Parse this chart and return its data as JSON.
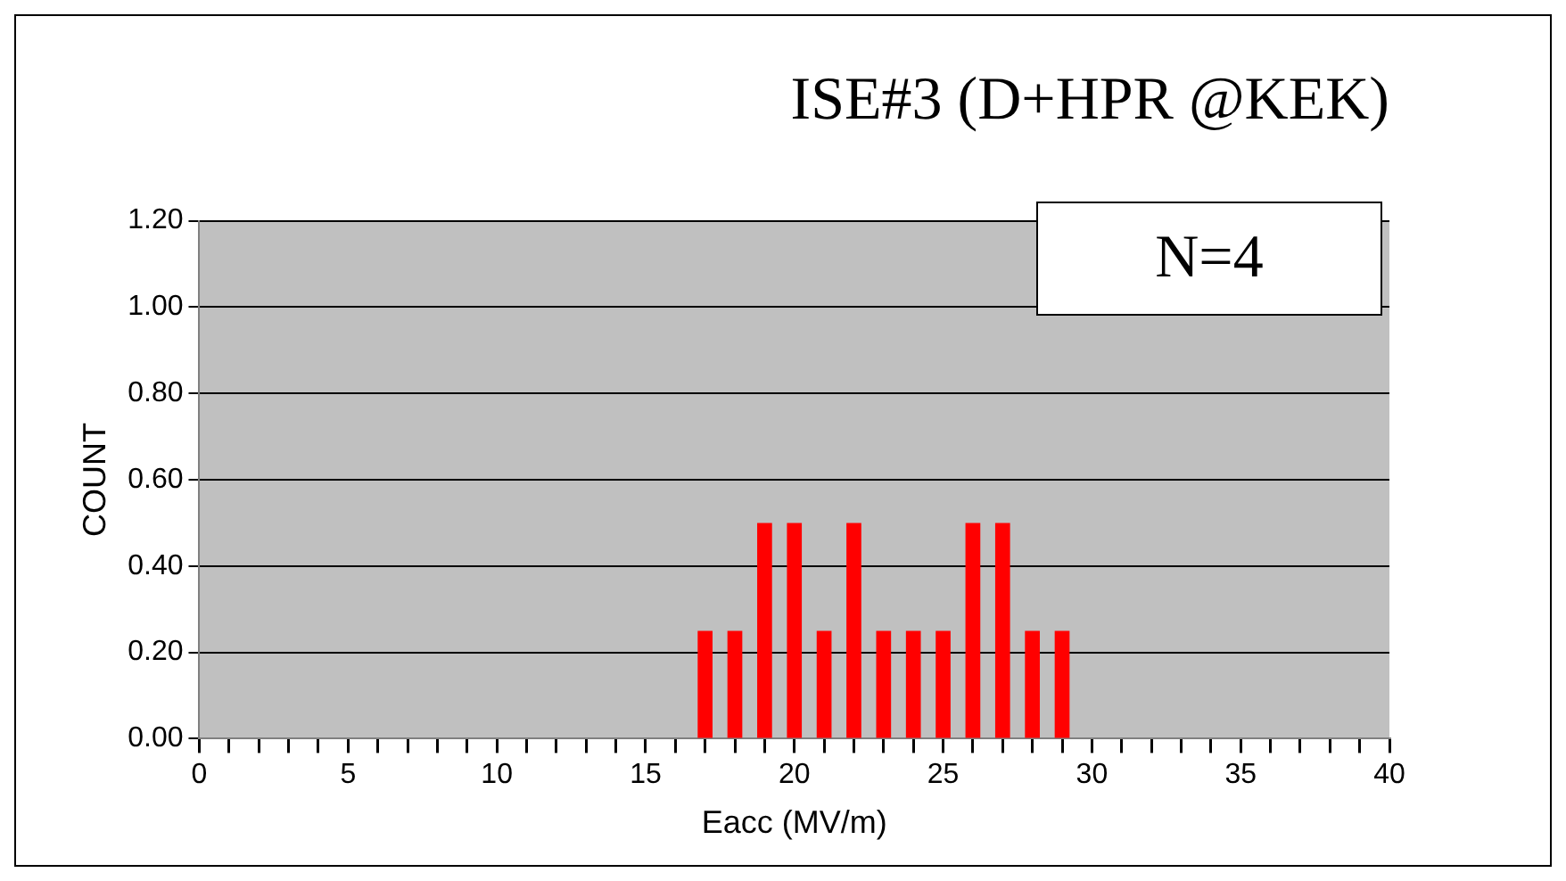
{
  "chart_data": {
    "type": "bar",
    "title": "ISE#3 (D+HPR @KEK)",
    "xlabel": "Eacc (MV/m)",
    "ylabel": "COUNT",
    "x": [
      17,
      18,
      19,
      20,
      21,
      22,
      23,
      24,
      25,
      26,
      27,
      28,
      29
    ],
    "values": [
      0.25,
      0.25,
      0.5,
      0.5,
      0.25,
      0.5,
      0.25,
      0.25,
      0.25,
      0.5,
      0.5,
      0.25,
      0.25
    ],
    "color": "#ff0000",
    "xlim": [
      0,
      40
    ],
    "xticks": [
      0,
      {
        "value": 1,
        "label": null
      },
      {
        "value": 2,
        "label": null
      },
      {
        "value": 3,
        "label": null
      },
      {
        "value": 4,
        "label": null
      },
      5,
      {
        "value": 6,
        "label": null
      },
      {
        "value": 7,
        "label": null
      },
      {
        "value": 8,
        "label": null
      },
      {
        "value": 9,
        "label": null
      },
      10,
      {
        "value": 11,
        "label": null
      },
      {
        "value": 12,
        "label": null
      },
      {
        "value": 13,
        "label": null
      },
      {
        "value": 14,
        "label": null
      },
      15,
      {
        "value": 16,
        "label": null
      },
      {
        "value": 17,
        "label": null
      },
      {
        "value": 18,
        "label": null
      },
      {
        "value": 19,
        "label": null
      },
      20,
      {
        "value": 21,
        "label": null
      },
      {
        "value": 22,
        "label": null
      },
      {
        "value": 23,
        "label": null
      },
      {
        "value": 24,
        "label": null
      },
      25,
      {
        "value": 26,
        "label": null
      },
      {
        "value": 27,
        "label": null
      },
      {
        "value": 28,
        "label": null
      },
      {
        "value": 29,
        "label": null
      },
      30,
      {
        "value": 31,
        "label": null
      },
      {
        "value": 32,
        "label": null
      },
      {
        "value": 33,
        "label": null
      },
      {
        "value": 34,
        "label": null
      },
      35,
      {
        "value": 36,
        "label": null
      },
      {
        "value": 37,
        "label": null
      },
      {
        "value": 38,
        "label": null
      },
      {
        "value": 39,
        "label": null
      },
      40
    ],
    "ylim": [
      0,
      1.2
    ],
    "yticks": [
      {
        "value": 0,
        "label": "0.00"
      },
      {
        "value": 0.2,
        "label": "0.20"
      },
      {
        "value": 0.4,
        "label": "0.40"
      },
      {
        "value": 0.6,
        "label": "0.60"
      },
      {
        "value": 0.8,
        "label": "0.80"
      },
      {
        "value": 1,
        "label": "1.00"
      },
      {
        "value": 1.2,
        "label": "1.20"
      }
    ],
    "grid": "y",
    "legend": false,
    "annotations": [
      "N=4"
    ]
  }
}
